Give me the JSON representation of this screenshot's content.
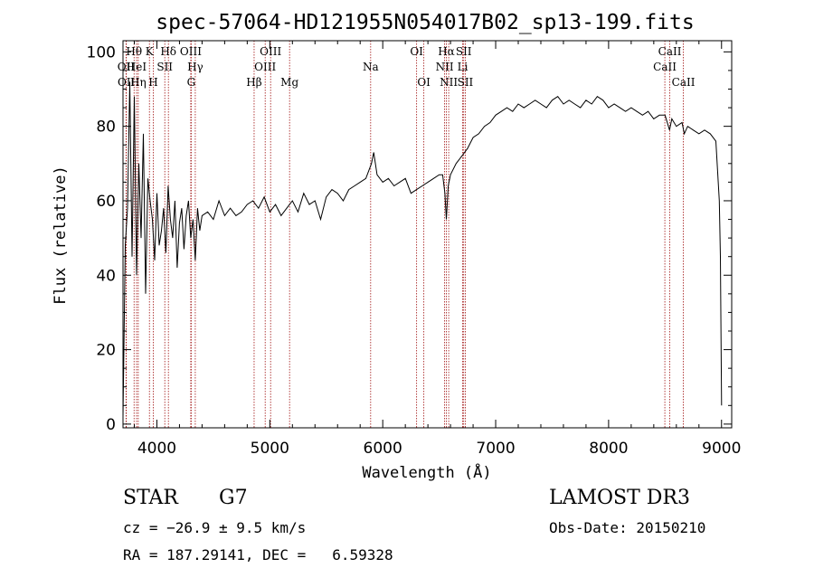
{
  "chart_data": {
    "type": "line",
    "title": "spec-57064-HD121955N054017B02_sp13-199.fits",
    "xlabel": "Wavelength (Å)",
    "ylabel": "Flux (relative)",
    "xlim": [
      3700,
      9090
    ],
    "ylim": [
      -1,
      103
    ],
    "xticks": [
      4000,
      5000,
      6000,
      7000,
      8000,
      9000
    ],
    "yticks": [
      0,
      20,
      40,
      60,
      80,
      100
    ],
    "spectral_lines": [
      {
        "label": "OII",
        "wavelength": 3727,
        "row": 2
      },
      {
        "label": "OII",
        "wavelength": 3729,
        "row": 3
      },
      {
        "label": "Hθ",
        "wavelength": 3798,
        "row": 1
      },
      {
        "label": "HeI",
        "wavelength": 3820,
        "row": 2
      },
      {
        "label": "Hη",
        "wavelength": 3835,
        "row": 3
      },
      {
        "label": "K",
        "wavelength": 3934,
        "row": 1
      },
      {
        "label": "H",
        "wavelength": 3968,
        "row": 3
      },
      {
        "label": "SII",
        "wavelength": 4070,
        "row": 2
      },
      {
        "label": "Hδ",
        "wavelength": 4102,
        "row": 1
      },
      {
        "label": "OIII",
        "wavelength": 4300,
        "row": 1
      },
      {
        "label": "G",
        "wavelength": 4304,
        "row": 3
      },
      {
        "label": "Hγ",
        "wavelength": 4340,
        "row": 2
      },
      {
        "label": "Hβ",
        "wavelength": 4861,
        "row": 3
      },
      {
        "label": "OIII",
        "wavelength": 4959,
        "row": 2
      },
      {
        "label": "OIII",
        "wavelength": 5007,
        "row": 1
      },
      {
        "label": "Mg",
        "wavelength": 5175,
        "row": 3
      },
      {
        "label": "Na",
        "wavelength": 5893,
        "row": 2
      },
      {
        "label": "OI",
        "wavelength": 6300,
        "row": 1
      },
      {
        "label": "OI",
        "wavelength": 6364,
        "row": 3
      },
      {
        "label": "NII",
        "wavelength": 6548,
        "row": 2
      },
      {
        "label": "Hα",
        "wavelength": 6563,
        "row": 1
      },
      {
        "label": "NII",
        "wavelength": 6584,
        "row": 3
      },
      {
        "label": "SII",
        "wavelength": 6717,
        "row": 1
      },
      {
        "label": "Li",
        "wavelength": 6708,
        "row": 2
      },
      {
        "label": "SII",
        "wavelength": 6731,
        "row": 3
      },
      {
        "label": "CaII",
        "wavelength": 8498,
        "row": 2
      },
      {
        "label": "CaII",
        "wavelength": 8542,
        "row": 1
      },
      {
        "label": "CaII",
        "wavelength": 8662,
        "row": 3
      }
    ],
    "series": [
      {
        "name": "flux",
        "x": [
          3700,
          3720,
          3740,
          3760,
          3780,
          3800,
          3820,
          3840,
          3860,
          3880,
          3900,
          3920,
          3940,
          3960,
          3980,
          4000,
          4020,
          4040,
          4060,
          4080,
          4100,
          4120,
          4140,
          4160,
          4180,
          4200,
          4220,
          4240,
          4260,
          4280,
          4300,
          4320,
          4340,
          4360,
          4380,
          4400,
          4450,
          4500,
          4550,
          4600,
          4650,
          4700,
          4750,
          4800,
          4850,
          4900,
          4950,
          5000,
          5050,
          5100,
          5150,
          5200,
          5250,
          5300,
          5350,
          5400,
          5450,
          5500,
          5550,
          5600,
          5650,
          5700,
          5750,
          5800,
          5850,
          5900,
          5920,
          5950,
          6000,
          6050,
          6100,
          6150,
          6200,
          6250,
          6300,
          6350,
          6400,
          6450,
          6500,
          6530,
          6550,
          6563,
          6580,
          6600,
          6650,
          6700,
          6750,
          6800,
          6850,
          6900,
          6950,
          7000,
          7050,
          7100,
          7150,
          7200,
          7250,
          7300,
          7350,
          7400,
          7450,
          7500,
          7550,
          7600,
          7650,
          7700,
          7750,
          7800,
          7850,
          7900,
          7950,
          8000,
          8050,
          8100,
          8150,
          8200,
          8250,
          8300,
          8350,
          8400,
          8450,
          8500,
          8540,
          8560,
          8600,
          8650,
          8670,
          8700,
          8750,
          8800,
          8850,
          8900,
          8950,
          8980,
          8990,
          9000
        ],
        "y": [
          2,
          48,
          58,
          92,
          45,
          88,
          40,
          70,
          50,
          78,
          35,
          66,
          60,
          55,
          44,
          62,
          48,
          52,
          58,
          46,
          64,
          55,
          50,
          60,
          42,
          54,
          58,
          47,
          56,
          60,
          50,
          55,
          44,
          58,
          52,
          56,
          57,
          55,
          60,
          56,
          58,
          56,
          57,
          59,
          60,
          58,
          61,
          57,
          59,
          56,
          58,
          60,
          57,
          62,
          59,
          60,
          55,
          61,
          63,
          62,
          60,
          63,
          64,
          65,
          66,
          70,
          73,
          67,
          65,
          66,
          64,
          65,
          66,
          62,
          63,
          64,
          65,
          66,
          67,
          67,
          62,
          55,
          64,
          67,
          70,
          72,
          74,
          77,
          78,
          80,
          81,
          83,
          84,
          85,
          84,
          86,
          85,
          86,
          87,
          86,
          85,
          87,
          88,
          86,
          87,
          86,
          85,
          87,
          86,
          88,
          87,
          85,
          86,
          85,
          84,
          85,
          84,
          83,
          84,
          82,
          83,
          83,
          79,
          82,
          80,
          81,
          78,
          80,
          79,
          78,
          79,
          78,
          76,
          60,
          45,
          5
        ]
      }
    ]
  },
  "info": {
    "class": "STAR",
    "subclass": "G7",
    "survey": "LAMOST DR3",
    "cz": "cz = −26.9 ± 9.5 km/s",
    "obs_date": "Obs-Date: 20150210",
    "coords": "RA = 187.29141, DEC =   6.59328"
  },
  "colors": {
    "line_marker": "#a01010",
    "axis": "#000000",
    "spectrum": "#000000"
  }
}
